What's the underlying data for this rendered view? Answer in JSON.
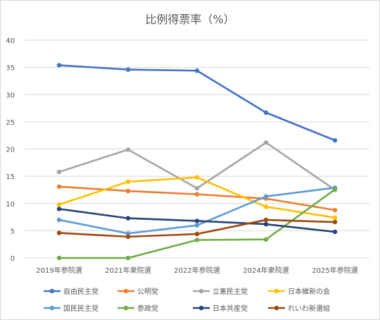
{
  "chart_data": {
    "type": "line",
    "title": "比例得票率（%）",
    "xlabel": "",
    "ylabel": "",
    "ylim": [
      0,
      40
    ],
    "yticks": [
      0,
      5,
      10,
      15,
      20,
      25,
      30,
      35,
      40
    ],
    "grid": true,
    "legend_position": "bottom",
    "categories": [
      "2019年参院選",
      "2021年衆院選",
      "2022年参院選",
      "2024年衆院選",
      "2025年参院選"
    ],
    "series": [
      {
        "name": "自由民主党",
        "color": "#4472c4",
        "values": [
          35.4,
          34.6,
          34.4,
          26.7,
          21.6
        ]
      },
      {
        "name": "公明党",
        "color": "#ed7d31",
        "values": [
          13.1,
          12.3,
          11.7,
          10.9,
          8.8
        ]
      },
      {
        "name": "立憲民主党",
        "color": "#a5a5a5",
        "values": [
          15.8,
          19.9,
          12.8,
          21.2,
          12.5
        ]
      },
      {
        "name": "日本維新の会",
        "color": "#ffc000",
        "values": [
          9.8,
          14.0,
          14.8,
          9.4,
          7.4
        ]
      },
      {
        "name": "国民民主党",
        "color": "#5b9bd5",
        "values": [
          7.0,
          4.5,
          6.0,
          11.3,
          12.9
        ]
      },
      {
        "name": "参政党",
        "color": "#70ad47",
        "values": [
          0.0,
          0.0,
          3.3,
          3.4,
          12.6
        ]
      },
      {
        "name": "日本共産党",
        "color": "#264478",
        "values": [
          9.0,
          7.3,
          6.8,
          6.2,
          4.8
        ]
      },
      {
        "name": "れいわ新選組",
        "color": "#9e480e",
        "values": [
          4.6,
          3.9,
          4.4,
          7.0,
          6.6
        ]
      }
    ]
  }
}
